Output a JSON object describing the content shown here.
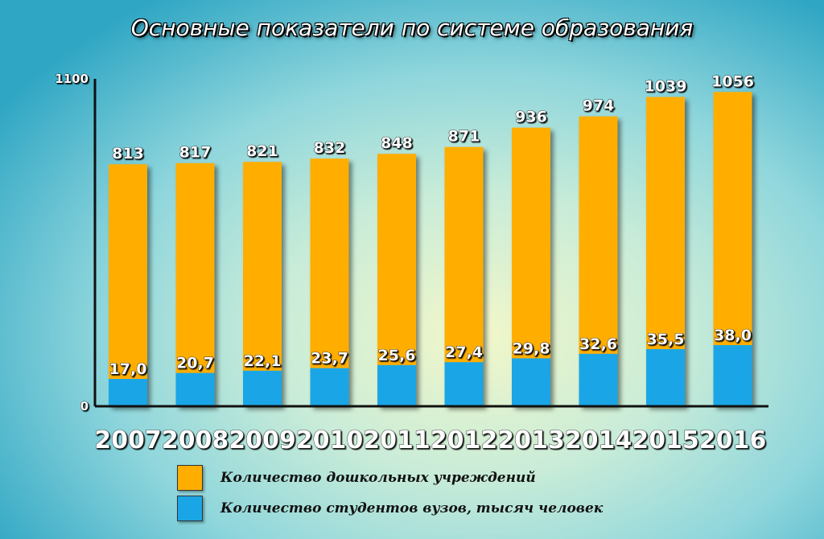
{
  "chart_data": {
    "type": "bar",
    "title": "Основные показатели по системе образования",
    "categories": [
      "2007",
      "2008",
      "2009",
      "2010",
      "2011",
      "2012",
      "2013",
      "2014",
      "2015",
      "2016"
    ],
    "series": [
      {
        "name": "Количество дошкольных учреждений",
        "values": [
          813,
          817,
          821,
          832,
          848,
          871,
          936,
          974,
          1039,
          1056
        ],
        "labels": [
          "813",
          "817",
          "821",
          "832",
          "848",
          "871",
          "936",
          "974",
          "1039",
          "1056"
        ],
        "color": "#ffae00"
      },
      {
        "name": "Количество студентов вузов, тысяч человек",
        "values": [
          17.0,
          20.7,
          22.1,
          23.7,
          25.6,
          27.4,
          29.8,
          32.6,
          35.5,
          38.0
        ],
        "labels": [
          "17,0",
          "20,7",
          "22,1",
          "23,7",
          "25,6",
          "27,4",
          "29,8",
          "32,6",
          "35,5",
          "38,0"
        ],
        "color": "#1aa6e6"
      }
    ],
    "ylim": [
      0,
      1100
    ],
    "yticks": [
      "0",
      "1100"
    ],
    "grid": false,
    "legend_position": "bottom"
  }
}
